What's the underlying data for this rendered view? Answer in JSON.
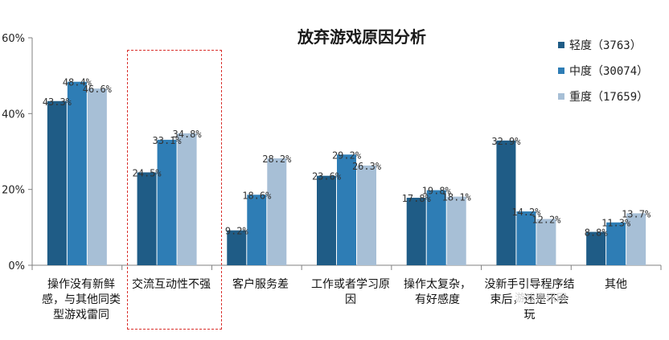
{
  "chart_data": {
    "type": "bar",
    "title": "放弃游戏原因分析",
    "categories": [
      "操作没有新鲜感，与其他同类型游戏雷同",
      "交流互动性不强",
      "客户服务差",
      "工作或者学习原因",
      "操作太复杂，有好感度",
      "没新手引导程序结束后，还是不会玩",
      "其他"
    ],
    "category_lines": [
      [
        "操作没有新鲜",
        "感，与其他同类",
        "型游戏雷同"
      ],
      [
        "交流互动性不强"
      ],
      [
        "客户服务差"
      ],
      [
        "工作或者学习原",
        "因"
      ],
      [
        "操作太复杂，",
        "有好感度"
      ],
      [
        "没新手引导程序结",
        "束后，还是不会",
        "玩"
      ],
      [
        "其他"
      ]
    ],
    "series": [
      {
        "name": "轻度（3763）",
        "color": "#1f5c86",
        "values": [
          43.3,
          24.5,
          9.2,
          23.6,
          17.8,
          32.9,
          8.8
        ]
      },
      {
        "name": "中度（30074）",
        "color": "#2e7db5",
        "values": [
          48.4,
          33.1,
          18.6,
          29.2,
          19.8,
          14.2,
          11.3
        ]
      },
      {
        "name": "重度（17659）",
        "color": "#a7bfd6",
        "values": [
          46.6,
          34.8,
          28.2,
          26.3,
          18.1,
          12.2,
          13.7
        ]
      }
    ],
    "data_labels": [
      [
        "43.3%",
        "24.5%",
        "9.2%",
        "23.6%",
        "17.8%",
        "32.9%",
        "8.8%"
      ],
      [
        "48.4%",
        "33.1%",
        "18.6%",
        "29.2%",
        "19.8%",
        "14.2%",
        "11.3%"
      ],
      [
        "46.6%",
        "34.8%",
        "28.2%",
        "26.3%",
        "18.1%",
        "12.2%",
        "13.7%"
      ]
    ],
    "yticks": [
      "0%",
      "20%",
      "40%",
      "60%"
    ],
    "ytick_values": [
      0,
      20,
      40,
      60
    ],
    "ylim": [
      0,
      60
    ],
    "legend_position": "top-right",
    "highlighted_category": "交流互动性不强"
  },
  "watermark": "游戏资讯网"
}
